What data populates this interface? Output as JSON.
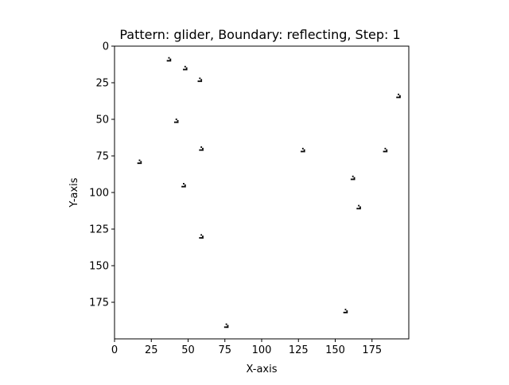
{
  "chart_data": {
    "type": "scatter",
    "title": "Pattern: glider, Boundary: reflecting, Step: 1",
    "xlabel": "X-axis",
    "ylabel": "Y-axis",
    "xlim": [
      0,
      200
    ],
    "ylim": [
      200,
      0
    ],
    "y_inverted": true,
    "grid": false,
    "marker": "glider (3x3 live cells)",
    "xticks": [
      0,
      25,
      50,
      75,
      100,
      125,
      150,
      175
    ],
    "yticks": [
      0,
      25,
      50,
      75,
      100,
      125,
      150,
      175
    ],
    "points": [
      {
        "x": 37,
        "y": 9
      },
      {
        "x": 48,
        "y": 15
      },
      {
        "x": 58,
        "y": 23
      },
      {
        "x": 193,
        "y": 34
      },
      {
        "x": 42,
        "y": 51
      },
      {
        "x": 59,
        "y": 70
      },
      {
        "x": 128,
        "y": 71
      },
      {
        "x": 184,
        "y": 71
      },
      {
        "x": 17,
        "y": 79
      },
      {
        "x": 162,
        "y": 90
      },
      {
        "x": 47,
        "y": 95
      },
      {
        "x": 166,
        "y": 110
      },
      {
        "x": 59,
        "y": 130
      },
      {
        "x": 157,
        "y": 181
      },
      {
        "x": 76,
        "y": 191
      }
    ]
  }
}
